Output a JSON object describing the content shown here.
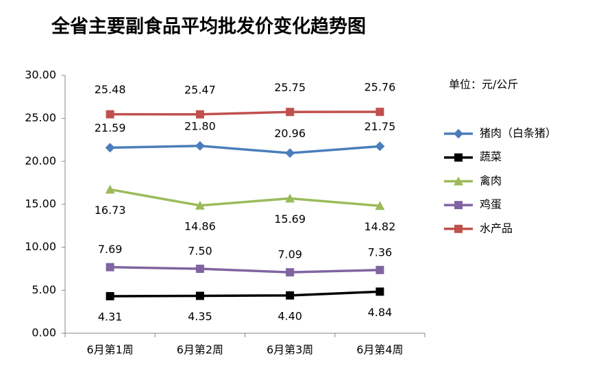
{
  "chart_data": {
    "type": "line",
    "title": "全省主要副食品平均批发价变化趋势图",
    "unit_label": "单位：元/公斤",
    "categories": [
      "6月第1周",
      "6月第2周",
      "6月第3周",
      "6月第4周"
    ],
    "series": [
      {
        "name": "猪肉（白条猪）",
        "color": "#4a7ebb",
        "marker": "diamond",
        "values": [
          21.59,
          21.8,
          20.96,
          21.75
        ],
        "value_labels": [
          "21.59",
          "21.80",
          "20.96",
          "21.75"
        ]
      },
      {
        "name": "蔬菜",
        "color": "#000000",
        "marker": "square",
        "values": [
          4.31,
          4.35,
          4.4,
          4.84
        ],
        "value_labels": [
          "4.31",
          "4.35",
          "4.40",
          "4.84"
        ]
      },
      {
        "name": "禽肉",
        "color": "#9bbb59",
        "marker": "triangle",
        "values": [
          16.73,
          14.86,
          15.69,
          14.82
        ],
        "value_labels": [
          "16.73",
          "14.86",
          "15.69",
          "14.82"
        ]
      },
      {
        "name": "鸡蛋",
        "color": "#8064a2",
        "marker": "square",
        "values": [
          7.69,
          7.5,
          7.09,
          7.36
        ],
        "value_labels": [
          "7.69",
          "7.50",
          "7.09",
          "7.36"
        ]
      },
      {
        "name": "水产品",
        "color": "#c0504d",
        "marker": "square",
        "values": [
          25.48,
          25.47,
          25.75,
          25.76
        ],
        "value_labels": [
          "25.48",
          "25.47",
          "25.75",
          "25.76"
        ]
      }
    ],
    "ylim": [
      0,
      30
    ],
    "yticks": [
      {
        "value": 0,
        "label": "0.00"
      },
      {
        "value": 5,
        "label": "5.00"
      },
      {
        "value": 10,
        "label": "10.00"
      },
      {
        "value": 15,
        "label": "15.00"
      },
      {
        "value": 20,
        "label": "20.00"
      },
      {
        "value": 25,
        "label": "25.00"
      },
      {
        "value": 30,
        "label": "30.00"
      }
    ],
    "grid": false,
    "legend": "right"
  }
}
